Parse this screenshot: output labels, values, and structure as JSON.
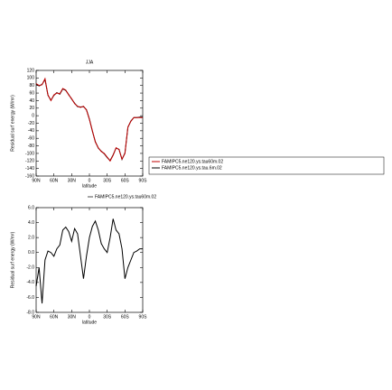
{
  "chart_data": [
    {
      "type": "line",
      "title": "JJA",
      "xlabel": "latitude",
      "ylabel": "Residual surf energy (W/m²)",
      "x": [
        90,
        85,
        80,
        75,
        70,
        65,
        60,
        55,
        50,
        45,
        40,
        35,
        30,
        25,
        20,
        15,
        10,
        5,
        0,
        -5,
        -10,
        -15,
        -20,
        -25,
        -30,
        -35,
        -40,
        -45,
        -50,
        -55,
        -60,
        -65,
        -70,
        -75,
        -80,
        -85,
        -90
      ],
      "series": [
        {
          "name": "FAMIPC5.ne120.ys.tau.6m.02",
          "color": "#000000",
          "values": [
            84,
            79,
            83,
            96,
            54,
            41,
            54,
            61,
            57,
            71,
            67,
            56,
            44,
            33,
            24,
            23,
            24,
            16,
            -9,
            -41,
            -69,
            -86,
            -94,
            -101,
            -111,
            -119,
            -104,
            -86,
            -89,
            -116,
            -99,
            -31,
            -14,
            -5,
            -5,
            -4,
            -4
          ]
        },
        {
          "name": "FAMIPC5.ne120.ys.tau60m.02",
          "color": "#c00000",
          "values": [
            85,
            80,
            82,
            98,
            55,
            40,
            55,
            60,
            58,
            72,
            68,
            55,
            45,
            32,
            25,
            22,
            25,
            15,
            -10,
            -40,
            -70,
            -85,
            -95,
            -100,
            -110,
            -120,
            -105,
            -85,
            -90,
            -115,
            -100,
            -30,
            -15,
            -5,
            -5,
            -5,
            -5
          ]
        }
      ],
      "xlim": [
        90,
        -90
      ],
      "xticks": [
        {
          "value": 90,
          "label": "90N"
        },
        {
          "value": 60,
          "label": "60N"
        },
        {
          "value": 30,
          "label": "30N"
        },
        0,
        {
          "value": -30,
          "label": "30S"
        },
        {
          "value": -60,
          "label": "60S"
        },
        {
          "value": -90,
          "label": "90S"
        }
      ],
      "ylim": [
        -160,
        120
      ],
      "yticks": [
        120,
        100,
        80,
        60,
        40,
        20,
        0,
        -20,
        -40,
        -60,
        -80,
        -100,
        -120,
        -140,
        -160
      ]
    },
    {
      "type": "line",
      "xlabel": "latitude",
      "ylabel": "Residual surf energy (W/m²)",
      "x": [
        90,
        85,
        80,
        75,
        70,
        65,
        60,
        55,
        50,
        45,
        40,
        35,
        30,
        25,
        20,
        15,
        10,
        5,
        0,
        -5,
        -10,
        -15,
        -20,
        -25,
        -30,
        -35,
        -40,
        -45,
        -50,
        -55,
        -60,
        -65,
        -70,
        -75,
        -80,
        -85,
        -90
      ],
      "series": [
        {
          "name": "FAMIPC5.ne120.ys.tau60m.02",
          "color": "#000000",
          "values": [
            -4.5,
            -2,
            -6.8,
            -1,
            0.2,
            0,
            -0.5,
            0.5,
            1,
            3,
            3.4,
            2.8,
            1.5,
            3.2,
            2.5,
            -0.5,
            -3.5,
            -0.5,
            2,
            3.5,
            4.2,
            3,
            1.2,
            0.5,
            0,
            2,
            4.5,
            3,
            2.5,
            0.5,
            -3.5,
            -2,
            -1,
            0,
            0.2,
            0.5,
            0.5
          ]
        }
      ],
      "xlim": [
        90,
        -90
      ],
      "xticks": [
        {
          "value": 90,
          "label": "90N"
        },
        {
          "value": 60,
          "label": "60N"
        },
        {
          "value": 30,
          "label": "30N"
        },
        0,
        {
          "value": -30,
          "label": "30S"
        },
        {
          "value": -60,
          "label": "60S"
        },
        {
          "value": -90,
          "label": "90S"
        }
      ],
      "ylim": [
        -8,
        6
      ],
      "yticks": [
        {
          "value": 6,
          "label": "6.0"
        },
        {
          "value": 4,
          "label": "4.0"
        },
        {
          "value": 2,
          "label": "2.0"
        },
        {
          "value": 0,
          "label": "0.0"
        },
        {
          "value": -2,
          "label": "-2.0"
        },
        {
          "value": -4,
          "label": "-4.0"
        },
        {
          "value": -6,
          "label": "-6.0"
        },
        {
          "value": -8,
          "label": "-8.0"
        }
      ]
    }
  ]
}
